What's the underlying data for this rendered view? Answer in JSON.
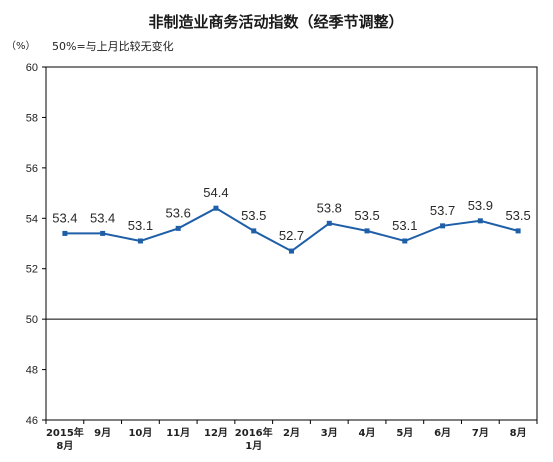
{
  "chart_data": {
    "type": "line",
    "title": "非制造业商务活动指数（经季节调整）",
    "unit": "（%）",
    "note": "50%=与上月比较无变化",
    "categories": [
      [
        "2015年",
        "8月"
      ],
      [
        "9月"
      ],
      [
        "10月"
      ],
      [
        "11月"
      ],
      [
        "12月"
      ],
      [
        "2016年",
        "1月"
      ],
      [
        "2月"
      ],
      [
        "3月"
      ],
      [
        "4月"
      ],
      [
        "5月"
      ],
      [
        "6月"
      ],
      [
        "7月"
      ],
      [
        "8月"
      ]
    ],
    "values": [
      53.4,
      53.4,
      53.1,
      53.6,
      54.4,
      53.5,
      52.7,
      53.8,
      53.5,
      53.1,
      53.7,
      53.9,
      53.5
    ],
    "value_labels": [
      "53.4",
      "53.4",
      "53.1",
      "53.6",
      "54.4",
      "53.5",
      "52.7",
      "53.8",
      "53.5",
      "53.1",
      "53.7",
      "53.9",
      "53.5"
    ],
    "ylim": [
      46,
      60
    ],
    "yticks": [
      "46",
      "48",
      "50",
      "52",
      "54",
      "56",
      "58",
      "60"
    ],
    "reference_value": 50,
    "grid": false,
    "legend": "none",
    "line_color": "#1f5fa8",
    "axis_color": "#000000"
  }
}
